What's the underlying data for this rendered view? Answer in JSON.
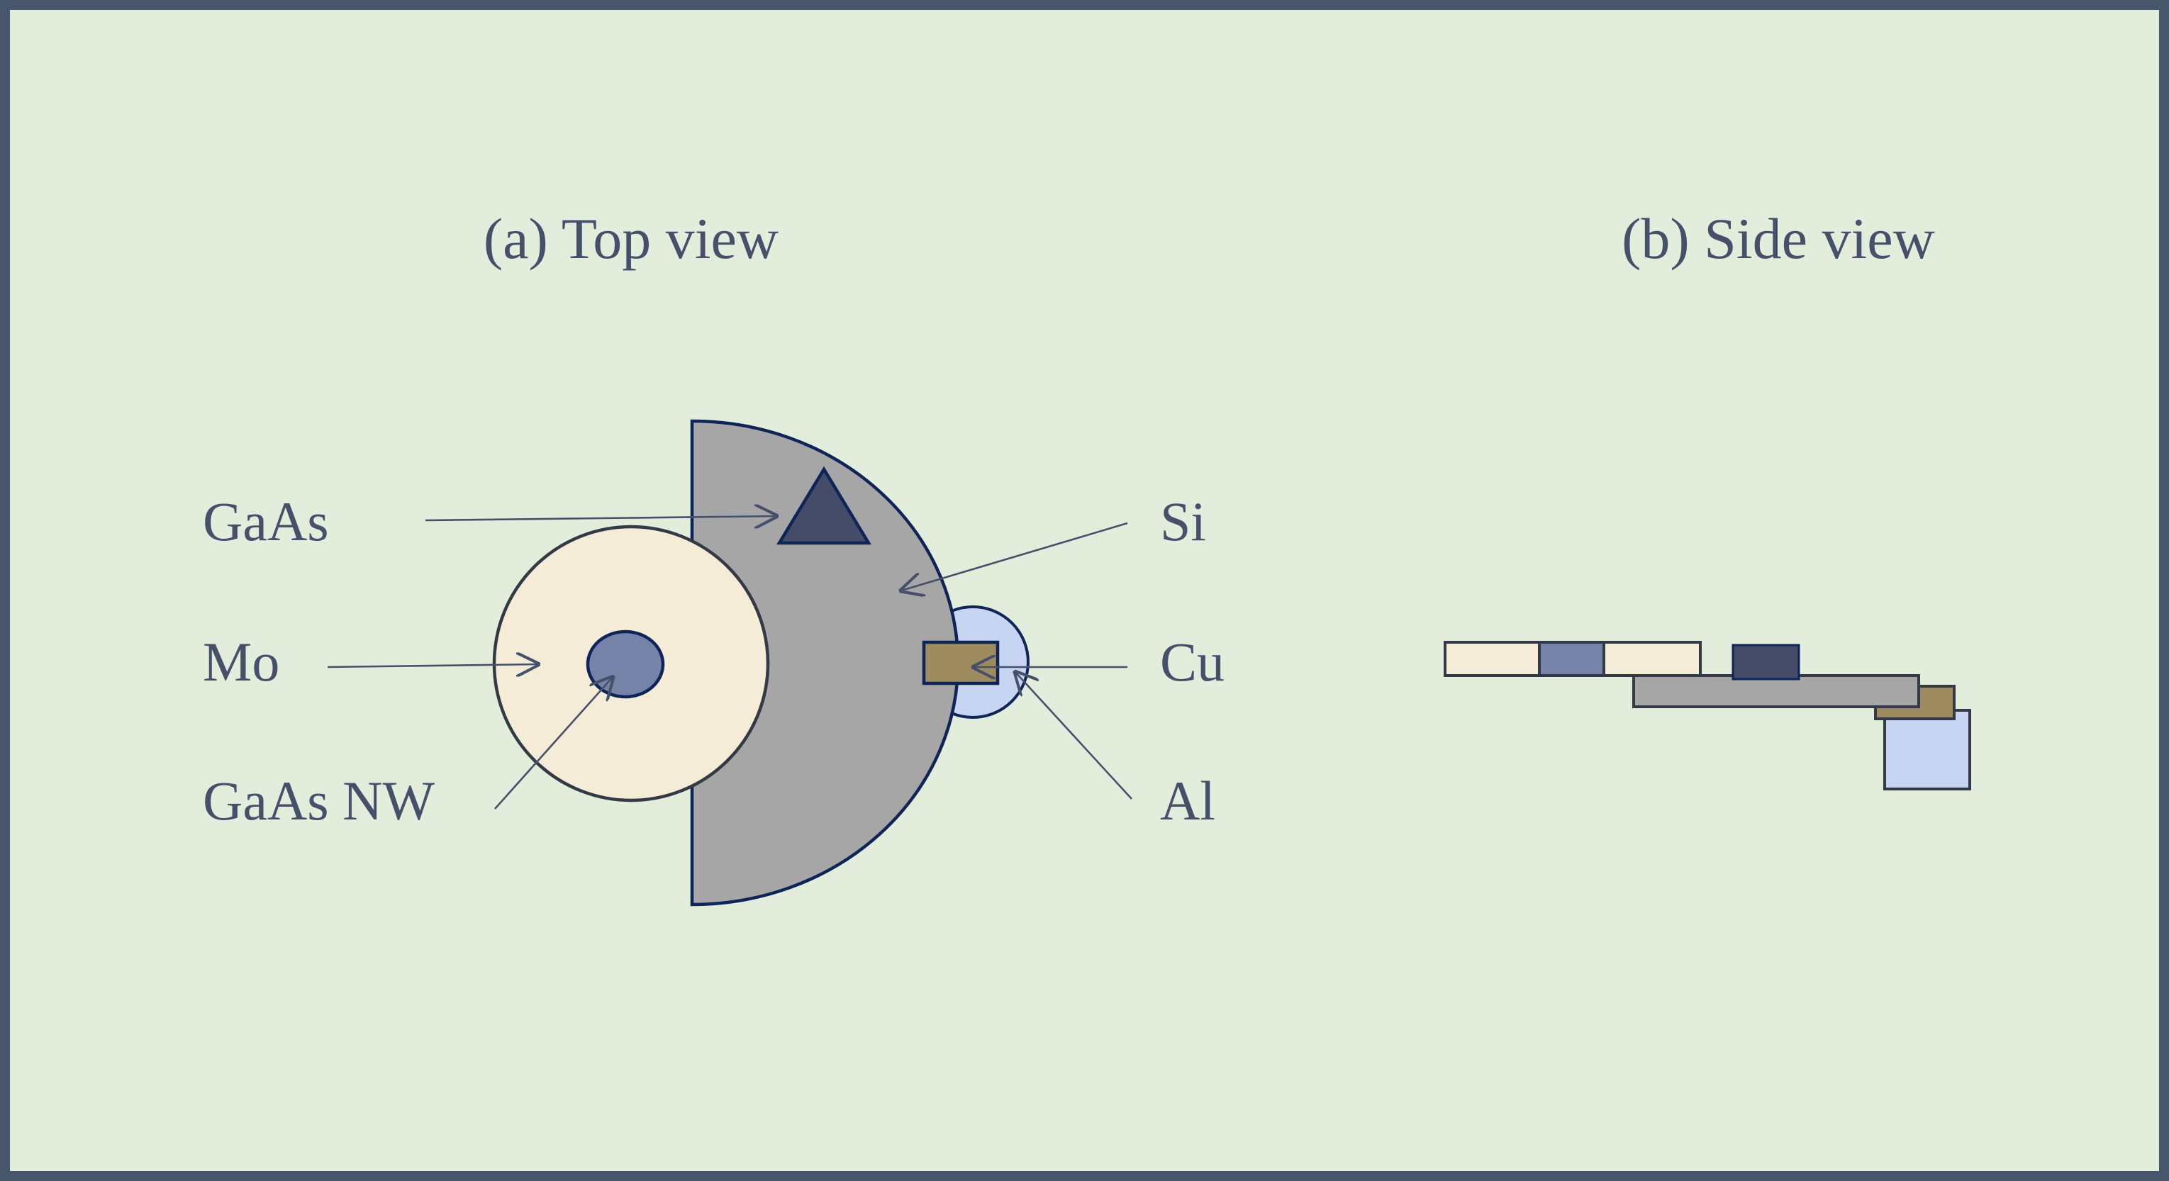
{
  "titles": {
    "top_view": "(a) Top view",
    "side_view": "(b) Side view"
  },
  "labels": {
    "gaas": "GaAs",
    "mo": "Mo",
    "gaas_nw": "GaAs NW",
    "si": "Si",
    "cu": "Cu",
    "al": "Al"
  },
  "colors": {
    "frame": "#48566b",
    "background": "#e2eedb",
    "mo": "#f5ecd8",
    "gaas_nw": "#7683a8",
    "si": "#a6a6a6",
    "gaas": "#454c68",
    "cu": "#9f8b60",
    "al": "#c7d4f2",
    "outline": "#0f2557",
    "text": "#46506a"
  }
}
